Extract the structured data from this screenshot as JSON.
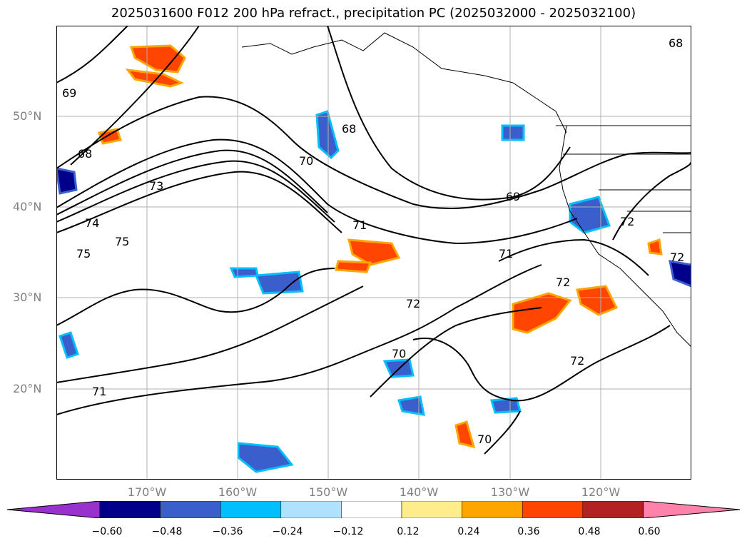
{
  "title": "2025031600 F012 200 hPa refract., precipitation PC (2025032000 - 2025032100)",
  "lat_labels": [
    "50°N",
    "40°N",
    "30°N",
    "20°N"
  ],
  "lon_labels": [
    "170°W",
    "160°W",
    "150°W",
    "140°W",
    "130°W",
    "120°W"
  ],
  "contour_labels": [
    "69",
    "68",
    "68",
    "70",
    "73",
    "74",
    "75",
    "75",
    "71",
    "69",
    "71",
    "72",
    "72",
    "70",
    "71",
    "70",
    "72",
    "72",
    "72",
    "68"
  ],
  "colorbar": {
    "ticks": [
      "−0.60",
      "−0.48",
      "−0.36",
      "−0.24",
      "−0.12",
      "0.12",
      "0.24",
      "0.36",
      "0.48",
      "0.60"
    ],
    "colors": [
      "#9932CC",
      "#00008B",
      "#3A5FCD",
      "#00BFFF",
      "#B0E2FF",
      "#FFFFFF",
      "#FFEC8B",
      "#FFA500",
      "#FF4500",
      "#B22222",
      "#FF82AB"
    ]
  }
}
